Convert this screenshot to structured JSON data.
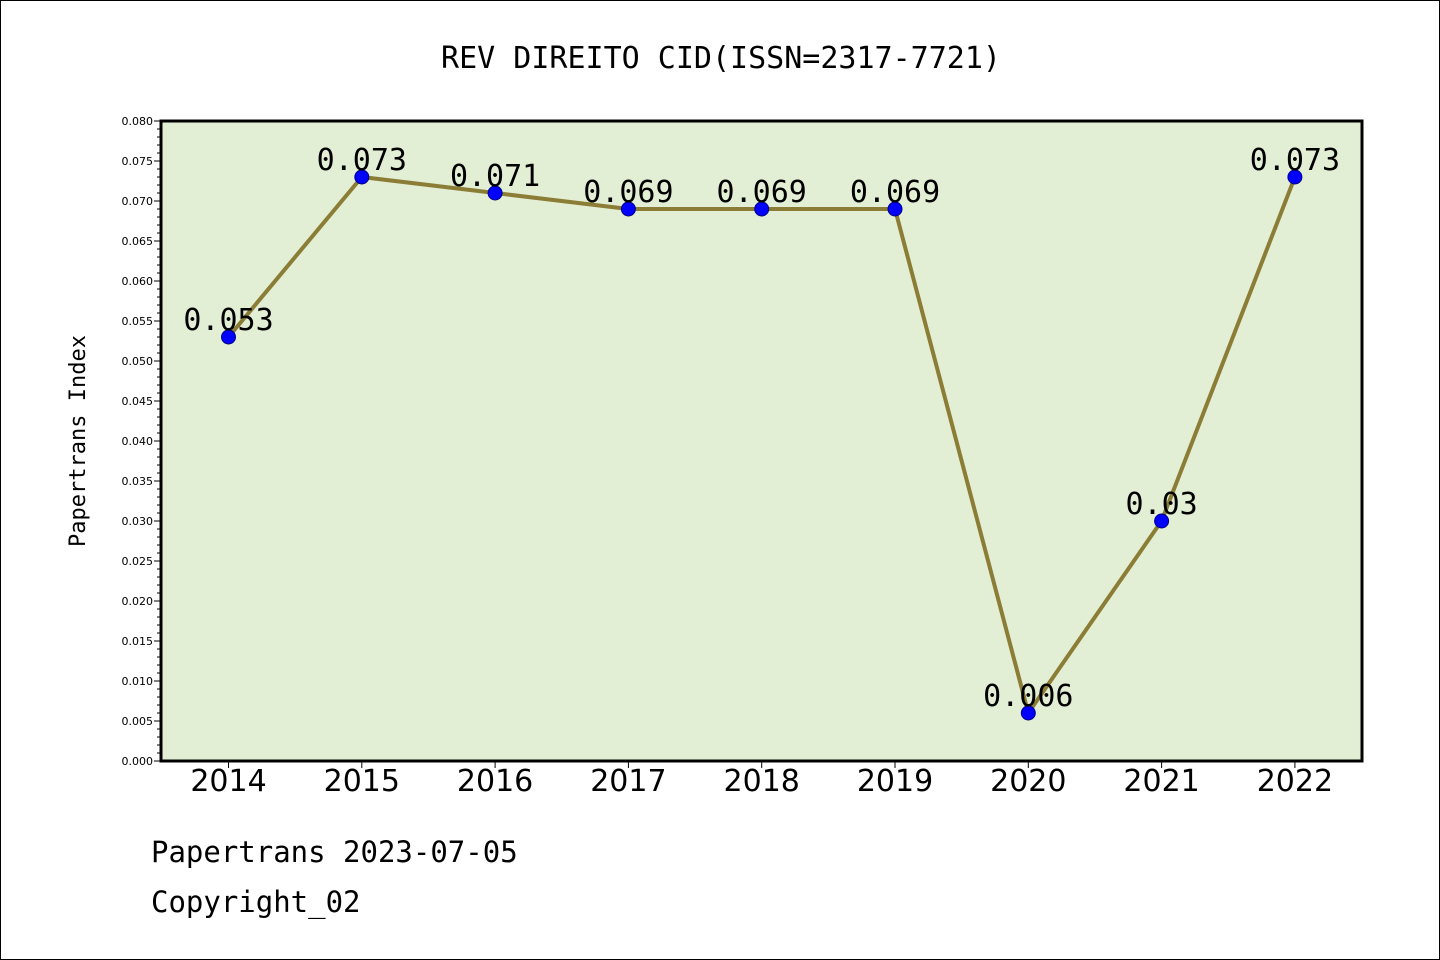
{
  "colors": {
    "plot_background": "#e2efd4",
    "line": "#8b7d35",
    "marker": "#0000ff",
    "marker_edge": "#000080",
    "axes": "#000000"
  },
  "chart_data": {
    "type": "line",
    "title": "REV DIREITO CID(ISSN=2317-7721)",
    "xlabel": "",
    "ylabel": "Papertrans Index",
    "categories": [
      "2014",
      "2015",
      "2016",
      "2017",
      "2018",
      "2019",
      "2020",
      "2021",
      "2022"
    ],
    "series": [
      {
        "values": [
          0.053,
          0.073,
          0.071,
          0.069,
          0.069,
          0.069,
          0.006,
          0.03,
          0.073
        ],
        "data_labels": [
          "0.053",
          "0.073",
          "0.071",
          "0.069",
          "0.069",
          "0.069",
          "0.006",
          "0.03",
          "0.073"
        ]
      }
    ],
    "ylim": [
      0.0,
      0.08
    ],
    "yticks": [
      "0.000",
      "0.005",
      "0.010",
      "0.015",
      "0.020",
      "0.025",
      "0.030",
      "0.035",
      "0.040",
      "0.045",
      "0.050",
      "0.055",
      "0.060",
      "0.065",
      "0.070",
      "0.075",
      "0.080"
    ],
    "grid": false,
    "legend": "none"
  },
  "footer": {
    "line1": "Papertrans 2023-07-05",
    "line2": "Copyright_02"
  }
}
